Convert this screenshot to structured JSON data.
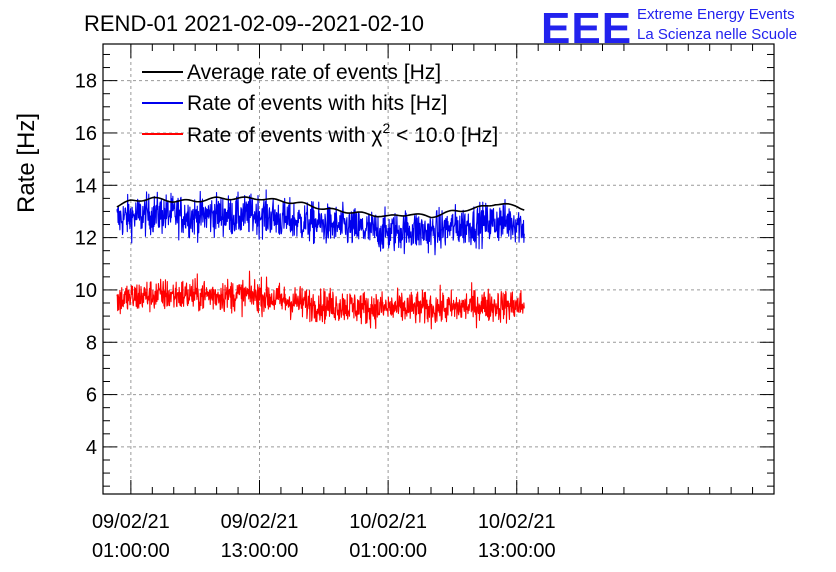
{
  "chart_data": {
    "type": "line",
    "title": "REND-01 2021-02-09--2021-02-10",
    "ylabel": "Rate [Hz]",
    "xlabel": "",
    "ylim": [
      2.2,
      19.4
    ],
    "yticks": [
      4,
      6,
      8,
      10,
      12,
      14,
      16,
      18
    ],
    "xlim_hours": [
      -1.6,
      61.0
    ],
    "xticks": [
      {
        "hour": 1,
        "date": "09/02/21",
        "time": "01:00:00"
      },
      {
        "hour": 13,
        "date": "09/02/21",
        "time": "13:00:00"
      },
      {
        "hour": 25,
        "date": "10/02/21",
        "time": "01:00:00"
      },
      {
        "hour": 37,
        "date": "10/02/21",
        "time": "13:00:00"
      }
    ],
    "grid": true,
    "legend_position": "top-left",
    "x_hours": [
      -0.3,
      1,
      3,
      5,
      7,
      9,
      11,
      13,
      15,
      17,
      19,
      21,
      23,
      25,
      27,
      29,
      31,
      33,
      35,
      37,
      37.7
    ],
    "series": [
      {
        "name": "Average rate of events [Hz]",
        "color": "#000000",
        "style": "smooth",
        "values": [
          13.2,
          13.4,
          13.5,
          13.4,
          13.4,
          13.5,
          13.5,
          13.5,
          13.4,
          13.3,
          13.1,
          13.0,
          12.9,
          12.8,
          12.9,
          12.8,
          13.0,
          13.1,
          13.3,
          13.2,
          13.1
        ]
      },
      {
        "name": "Rate of events with hits [Hz]",
        "color": "#0000ee",
        "style": "noisy",
        "noise": 0.55,
        "values": [
          12.7,
          12.8,
          12.9,
          12.9,
          12.8,
          12.9,
          12.8,
          12.9,
          12.7,
          12.6,
          12.5,
          12.4,
          12.3,
          12.2,
          12.3,
          12.2,
          12.4,
          12.5,
          12.6,
          12.6,
          12.4
        ]
      },
      {
        "name": "Rate of events with χ² < 10.0 [Hz]",
        "color": "#ff0000",
        "style": "noisy",
        "noise": 0.45,
        "values": [
          9.6,
          9.7,
          9.8,
          9.8,
          9.8,
          9.8,
          9.8,
          9.8,
          9.6,
          9.5,
          9.4,
          9.4,
          9.3,
          9.3,
          9.3,
          9.3,
          9.3,
          9.4,
          9.4,
          9.4,
          9.4
        ]
      }
    ]
  },
  "legend": {
    "items": [
      {
        "text": "Average rate of events [Hz]",
        "color": "#000000"
      },
      {
        "text": "Rate of events with hits [Hz]",
        "color": "#0000ee"
      },
      {
        "pre": "Rate of events with χ",
        "sup": "2",
        "post": " < 10.0 [Hz]",
        "color": "#ff0000"
      }
    ]
  },
  "logo": {
    "mark": "EEE",
    "line1": "Extreme Energy Events",
    "line2": "La Scienza nelle Scuole"
  }
}
